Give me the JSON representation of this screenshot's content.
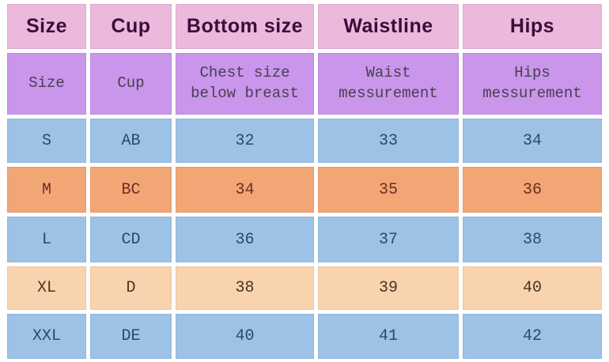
{
  "colors": {
    "header_bg": "#ecb8db",
    "subheader_bg": "#ca96ec",
    "row_blue_bg": "#9dc2e5",
    "row_orange_bg": "#f2a676",
    "row_peach_bg": "#f8d3ae",
    "header_text": "#3c0d3b",
    "subheader_text": "#474050",
    "row_blue_text": "#2a4a6c",
    "row_orange_text": "#6e2d24",
    "row_peach_text": "#4a3421",
    "page_bg": "#ffffff"
  },
  "chart_data": {
    "type": "table",
    "columns": [
      "Size",
      "Cup",
      "Bottom size",
      "Waistline",
      "Hips"
    ],
    "column_descriptions": [
      "Size",
      "Cup",
      "Chest size below breast",
      "Waist messurement",
      "Hips messurement"
    ],
    "rows": [
      [
        "S",
        "AB",
        "32",
        "33",
        "34"
      ],
      [
        "M",
        "BC",
        "34",
        "35",
        "36"
      ],
      [
        "L",
        "CD",
        "36",
        "37",
        "38"
      ],
      [
        "XL",
        "D",
        "38",
        "39",
        "40"
      ],
      [
        "XXL",
        "DE",
        "40",
        "41",
        "42"
      ]
    ],
    "layout_hints": {
      "header_row_style": "bold pink",
      "description_row_style": "purple",
      "data_row_styles": [
        "blue",
        "orange",
        "blue",
        "peach",
        "blue"
      ],
      "grid": "white gaps between cells"
    }
  }
}
